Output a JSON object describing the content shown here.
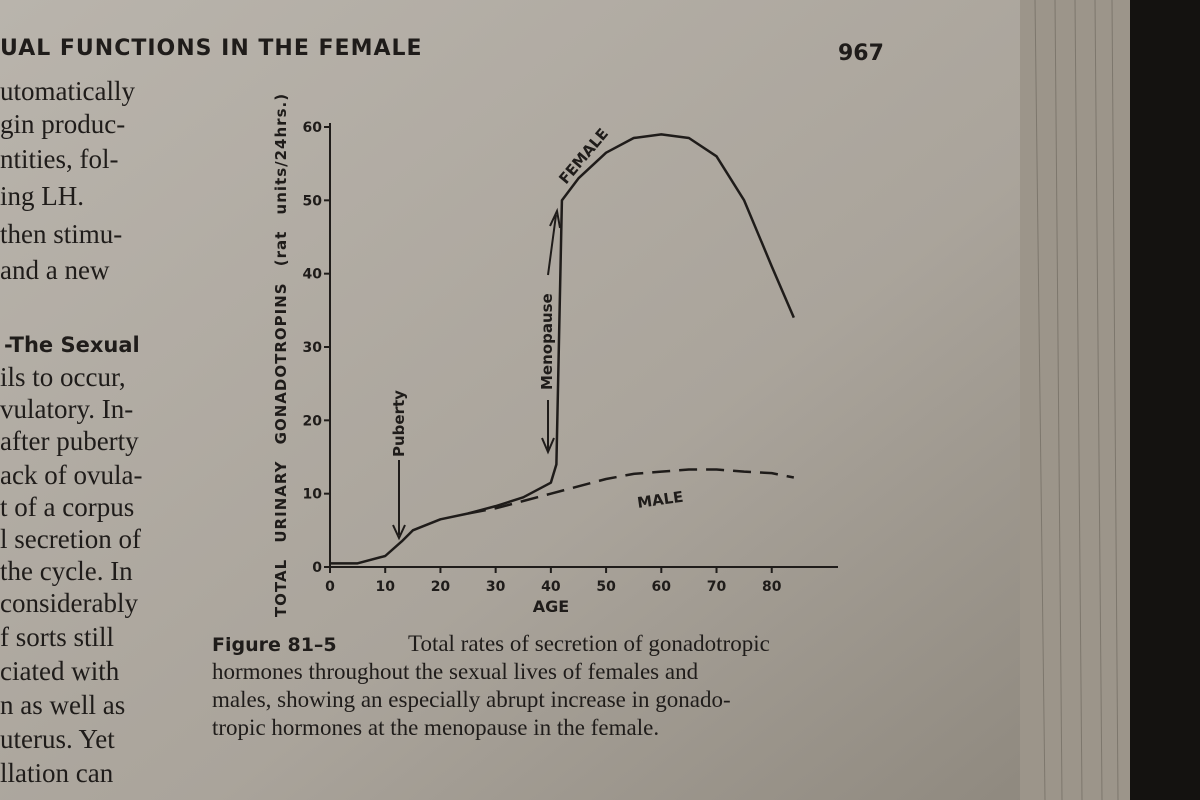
{
  "header": {
    "title": "UAL FUNCTIONS IN THE FEMALE",
    "page_number": "967"
  },
  "left_column": [
    "utomatically",
    "gin produc-",
    "ntities, fol-",
    "ing LH.",
    "then stimu-",
    "and a new",
    "-The Sexual",
    "ils to occur,",
    "vulatory. In-",
    "after puberty",
    "ack of ovula-",
    "t of a corpus",
    "l secretion of",
    "the cycle. In",
    "considerably",
    "f sorts still",
    "ciated with",
    "n as well as",
    "uterus. Yet",
    "llation can"
  ],
  "caption": {
    "label": "Figure 81–5",
    "lines": [
      "Total rates of secretion of gonadotropic",
      "hormones throughout the sexual lives of females and",
      "males, showing an especially abrupt increase in gonado-",
      "tropic hormones at the menopause in the female."
    ]
  },
  "chart_data": {
    "type": "line",
    "x_label": "AGE",
    "y_label": "TOTAL URINARY GONADOTROPINS (rat units/24hrs.)",
    "xlim": [
      0,
      92
    ],
    "ylim": [
      0,
      63
    ],
    "xticks": [
      0,
      10,
      20,
      30,
      40,
      50,
      60,
      70,
      80
    ],
    "yticks": [
      0,
      10,
      20,
      30,
      40,
      50,
      60
    ],
    "annotations": [
      "Puberty",
      "Menopause"
    ],
    "series": [
      {
        "name": "FEMALE",
        "color": "#1f1c1a",
        "dashed": false,
        "x": [
          0,
          5,
          10,
          13,
          15,
          20,
          25,
          30,
          35,
          40,
          41,
          42,
          45,
          50,
          55,
          60,
          65,
          70,
          75,
          80,
          84
        ],
        "values": [
          0.5,
          0.5,
          1.5,
          3.5,
          5,
          6.5,
          7.3,
          8.3,
          9.5,
          11.5,
          14,
          50,
          53,
          56.5,
          58.5,
          59,
          58.5,
          56,
          50,
          41,
          34
        ]
      },
      {
        "name": "MALE",
        "color": "#1f1c1a",
        "dashed": true,
        "x": [
          25,
          30,
          35,
          40,
          45,
          50,
          55,
          60,
          65,
          70,
          75,
          80,
          84
        ],
        "values": [
          7.3,
          8,
          9,
          10,
          11,
          12,
          12.7,
          13,
          13.3,
          13.3,
          13,
          12.8,
          12.2
        ]
      }
    ]
  }
}
